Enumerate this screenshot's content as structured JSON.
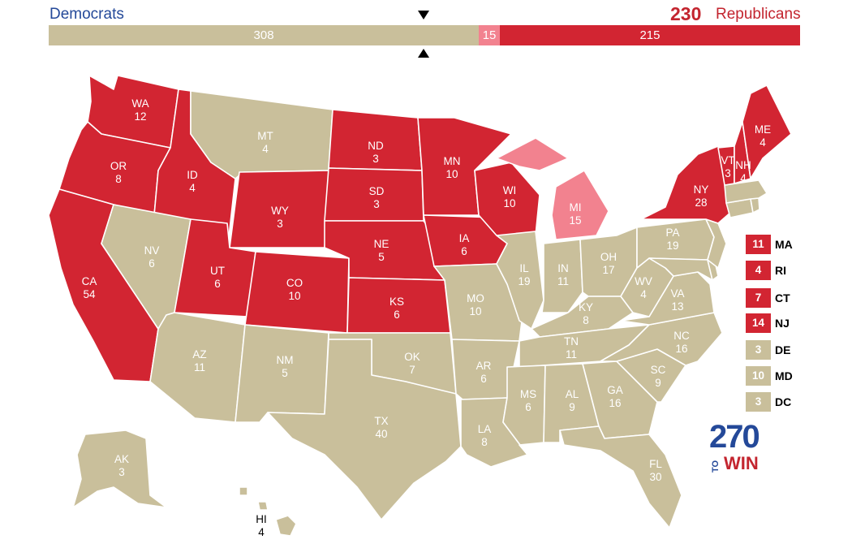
{
  "header": {
    "dem_label": "Democrats",
    "rep_total": "230",
    "rep_label": "Republicans"
  },
  "bar": {
    "tossup": "308",
    "lean_rep": "15",
    "rep": "215",
    "tossup_share": 0.5725,
    "lean_share": 0.0279,
    "rep_share": 0.3996
  },
  "colors": {
    "dem": "#244999",
    "safe_rep": "#d22532",
    "lean_rep": "#f2828f",
    "tossup": "#c9bf9b"
  },
  "states": {
    "WA": {
      "abbr": "WA",
      "ev": "12",
      "status": "safe_rep"
    },
    "OR": {
      "abbr": "OR",
      "ev": "8",
      "status": "safe_rep"
    },
    "CA": {
      "abbr": "CA",
      "ev": "54",
      "status": "safe_rep"
    },
    "ID": {
      "abbr": "ID",
      "ev": "4",
      "status": "safe_rep"
    },
    "NV": {
      "abbr": "NV",
      "ev": "6",
      "status": "tossup"
    },
    "MT": {
      "abbr": "MT",
      "ev": "4",
      "status": "tossup"
    },
    "WY": {
      "abbr": "WY",
      "ev": "3",
      "status": "safe_rep"
    },
    "UT": {
      "abbr": "UT",
      "ev": "6",
      "status": "safe_rep"
    },
    "CO": {
      "abbr": "CO",
      "ev": "10",
      "status": "safe_rep"
    },
    "AZ": {
      "abbr": "AZ",
      "ev": "11",
      "status": "tossup"
    },
    "NM": {
      "abbr": "NM",
      "ev": "5",
      "status": "tossup"
    },
    "ND": {
      "abbr": "ND",
      "ev": "3",
      "status": "safe_rep"
    },
    "SD": {
      "abbr": "SD",
      "ev": "3",
      "status": "safe_rep"
    },
    "NE": {
      "abbr": "NE",
      "ev": "5",
      "status": "safe_rep"
    },
    "KS": {
      "abbr": "KS",
      "ev": "6",
      "status": "safe_rep"
    },
    "OK": {
      "abbr": "OK",
      "ev": "7",
      "status": "tossup"
    },
    "TX": {
      "abbr": "TX",
      "ev": "40",
      "status": "tossup"
    },
    "MN": {
      "abbr": "MN",
      "ev": "10",
      "status": "safe_rep"
    },
    "IA": {
      "abbr": "IA",
      "ev": "6",
      "status": "safe_rep"
    },
    "MO": {
      "abbr": "MO",
      "ev": "10",
      "status": "tossup"
    },
    "AR": {
      "abbr": "AR",
      "ev": "6",
      "status": "tossup"
    },
    "LA": {
      "abbr": "LA",
      "ev": "8",
      "status": "tossup"
    },
    "WI": {
      "abbr": "WI",
      "ev": "10",
      "status": "safe_rep"
    },
    "IL": {
      "abbr": "IL",
      "ev": "19",
      "status": "tossup"
    },
    "MI": {
      "abbr": "MI",
      "ev": "15",
      "status": "lean_rep"
    },
    "IN": {
      "abbr": "IN",
      "ev": "11",
      "status": "tossup"
    },
    "OH": {
      "abbr": "OH",
      "ev": "17",
      "status": "tossup"
    },
    "KY": {
      "abbr": "KY",
      "ev": "8",
      "status": "tossup"
    },
    "TN": {
      "abbr": "TN",
      "ev": "11",
      "status": "tossup"
    },
    "MS": {
      "abbr": "MS",
      "ev": "6",
      "status": "tossup"
    },
    "AL": {
      "abbr": "AL",
      "ev": "9",
      "status": "tossup"
    },
    "GA": {
      "abbr": "GA",
      "ev": "16",
      "status": "tossup"
    },
    "FL": {
      "abbr": "FL",
      "ev": "30",
      "status": "tossup"
    },
    "SC": {
      "abbr": "SC",
      "ev": "9",
      "status": "tossup"
    },
    "NC": {
      "abbr": "NC",
      "ev": "16",
      "status": "tossup"
    },
    "VA": {
      "abbr": "VA",
      "ev": "13",
      "status": "tossup"
    },
    "WV": {
      "abbr": "WV",
      "ev": "4",
      "status": "tossup"
    },
    "PA": {
      "abbr": "PA",
      "ev": "19",
      "status": "tossup"
    },
    "NY": {
      "abbr": "NY",
      "ev": "28",
      "status": "safe_rep"
    },
    "VT": {
      "abbr": "VT",
      "ev": "3",
      "status": "safe_rep"
    },
    "NH": {
      "abbr": "NH",
      "ev": "4",
      "status": "safe_rep"
    },
    "ME": {
      "abbr": "ME",
      "ev": "4",
      "status": "safe_rep"
    },
    "AK": {
      "abbr": "AK",
      "ev": "3",
      "status": "tossup"
    },
    "HI": {
      "abbr": "HI",
      "ev": "4",
      "status": "tossup"
    }
  },
  "small_states": [
    {
      "ev": "11",
      "abbr": "MA",
      "status": "safe_rep"
    },
    {
      "ev": "4",
      "abbr": "RI",
      "status": "safe_rep"
    },
    {
      "ev": "7",
      "abbr": "CT",
      "status": "safe_rep"
    },
    {
      "ev": "14",
      "abbr": "NJ",
      "status": "safe_rep"
    },
    {
      "ev": "3",
      "abbr": "DE",
      "status": "tossup"
    },
    {
      "ev": "10",
      "abbr": "MD",
      "status": "tossup"
    },
    {
      "ev": "3",
      "abbr": "DC",
      "status": "tossup"
    }
  ],
  "logo": {
    "number": "270",
    "to": "TO",
    "win": "WIN"
  }
}
